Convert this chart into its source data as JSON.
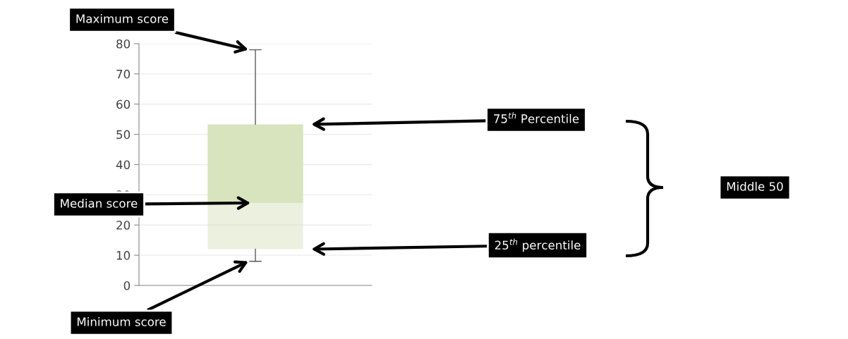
{
  "chart_data": {
    "type": "box",
    "categories": [
      null
    ],
    "boxes": [
      {
        "low": 8,
        "q1": 12,
        "median": 27.3,
        "q3": 53.3,
        "high": 78
      }
    ],
    "color": "#d7e4bd",
    "ylim": [
      0,
      80
    ],
    "yticks": [
      0,
      10,
      20,
      30,
      40,
      50,
      60,
      70,
      80
    ],
    "grid": "y",
    "annotations": [
      "Maximum score",
      "Median score",
      "Minimum score",
      "75$^{th}$ Percentile",
      "25$^{th}$ percentile",
      "Middle 50"
    ]
  }
}
